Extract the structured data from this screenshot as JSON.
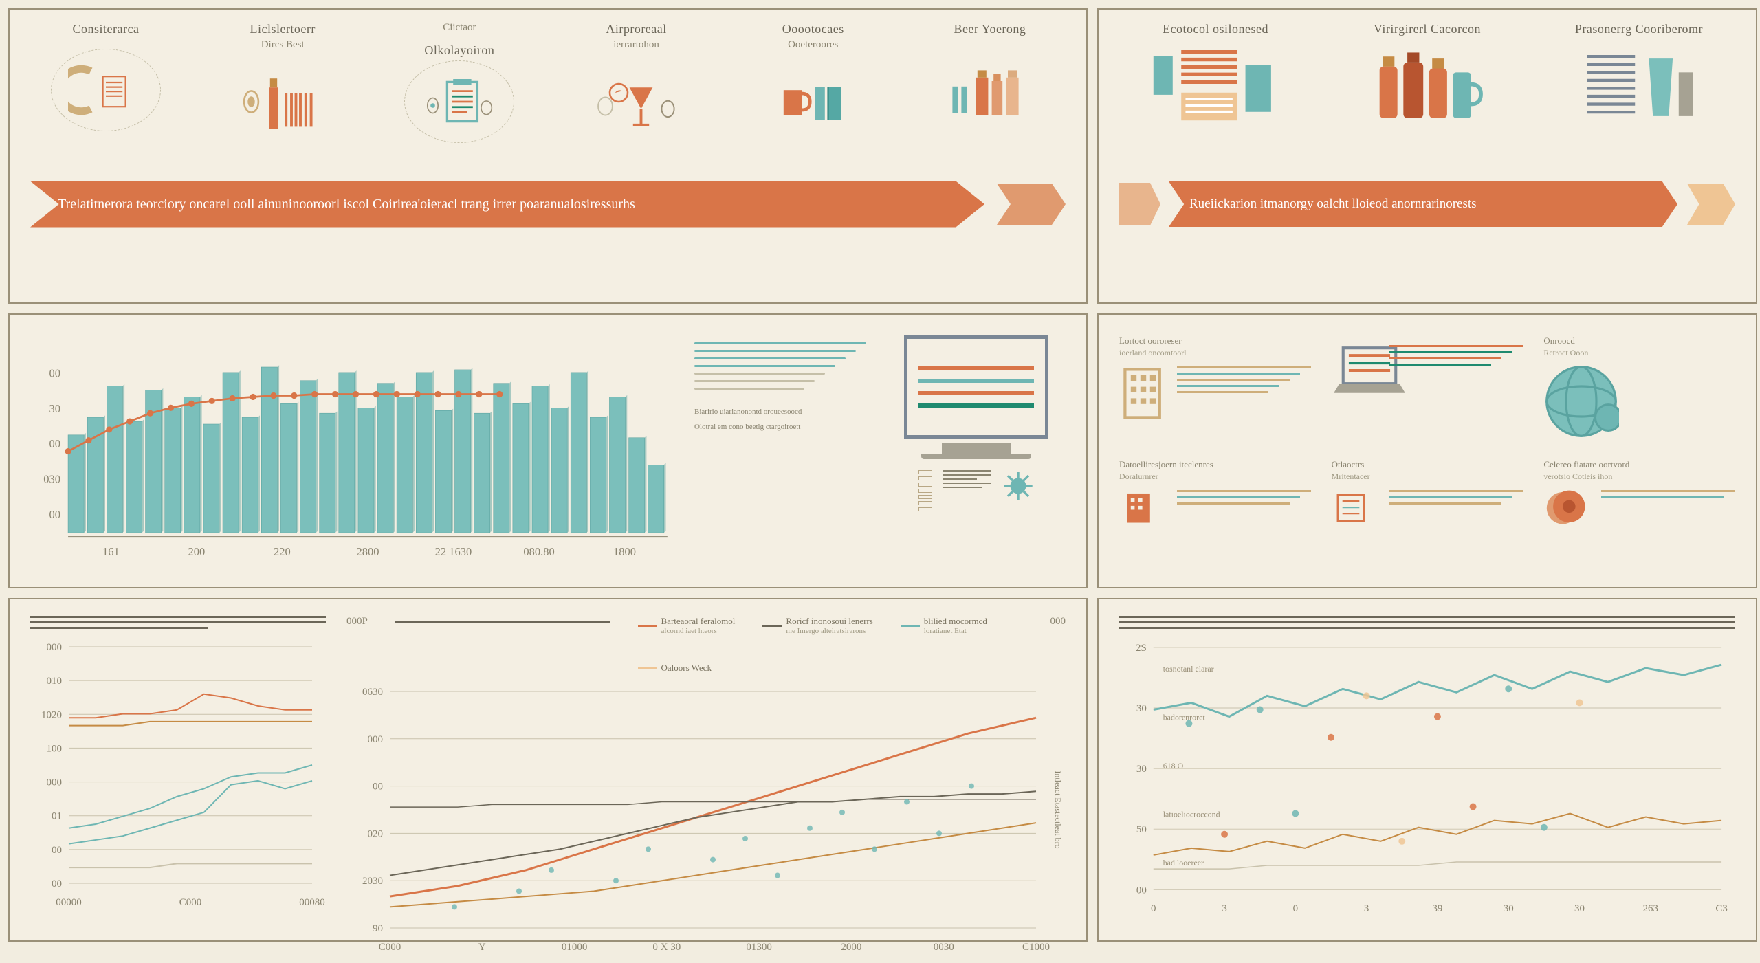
{
  "colors": {
    "bg": "#f2ede0",
    "panel_bg": "#f4efe3",
    "panel_border": "#9a9078",
    "orange": "#d97548",
    "orange_light": "#e09a6f",
    "peach": "#e8b58d",
    "cream": "#efc594",
    "teal": "#6eb6b3",
    "teal_dark": "#5aa3a0",
    "slate": "#7a8795",
    "text_main": "#6b6658",
    "text_sub": "#8a8470",
    "grid": "#c9c2ac",
    "dash": "#c5bfa8"
  },
  "top_left": {
    "icons": [
      {
        "title": "Consiterarca",
        "subtitle": ""
      },
      {
        "title": "Liclslertoerr",
        "subtitle": "Dircs Best"
      },
      {
        "title": "Ciictaor",
        "subtitle": "Olkolayoiron"
      },
      {
        "title": "Airproreaal",
        "subtitle": "ierrartohon"
      },
      {
        "title": "Ooootocaes",
        "subtitle": "Ooeteroores"
      },
      {
        "title": "Beer Yoerong",
        "subtitle": ""
      }
    ],
    "banner": "Trelatitnerora teorciory oncarel ooll ainuninooroorl iscol Coirirea'oieracl trang irrer poaranualosiressurhs"
  },
  "top_right": {
    "icons": [
      {
        "title": "Ecotocol osilonesed",
        "subtitle": ""
      },
      {
        "title": "Virirgirerl Cacorcon",
        "subtitle": ""
      },
      {
        "title": "Prasonerrg Cooriberomr",
        "subtitle": ""
      }
    ],
    "banner": "Rueiickarion itmanorgy oalcht lloieod anornrarinorests"
  },
  "bar_chart": {
    "type": "bar_with_line",
    "y_ticks": [
      "00",
      "030",
      "00",
      "30",
      "00"
    ],
    "x_labels": [
      "161",
      "200",
      "220",
      "2800",
      "22 1630",
      "080.80",
      "1800"
    ],
    "bar_values": [
      72,
      85,
      108,
      82,
      105,
      92,
      100,
      80,
      118,
      85,
      122,
      95,
      112,
      88,
      118,
      92,
      110,
      100,
      118,
      90,
      120,
      88,
      110,
      95,
      108,
      92,
      118,
      85,
      100,
      70,
      50
    ],
    "line_values": [
      60,
      68,
      76,
      82,
      88,
      92,
      95,
      97,
      99,
      100,
      101,
      101,
      102,
      102,
      102,
      102,
      102,
      102,
      102,
      102,
      102,
      102
    ],
    "bar_color": "#7bbfbb",
    "bar_stroke": "#5aa3a0",
    "line_color": "#d97548",
    "marker_color": "#d97548",
    "grid_color": "#c9c2ac",
    "label_color": "#8a8470",
    "ylim": [
      0,
      130
    ],
    "label_fontsize": 18
  },
  "text_block": {
    "lines1": [
      "#6eb6b3",
      "#6eb6b3",
      "#6eb6b3",
      "#6eb6b3",
      "#c5bfa8",
      "#c5bfa8",
      "#c5bfa8"
    ],
    "caption1": "Biaririo uiarianonontd oroueesoocd",
    "caption2": "Olotral em cono beetlg ctargoiroett"
  },
  "monitor_lines": [
    "#d97548",
    "#6eb6b3",
    "#d97548",
    "#1f8a6f"
  ],
  "mid_right": {
    "cells": [
      {
        "title": "Lortoct oororeser",
        "sub": "ioerland oncomtoorl",
        "icon": "building",
        "line_colors": [
          "#ceae7a",
          "#6eb6b3",
          "#ceae7a",
          "#6eb6b3",
          "#ceae7a"
        ]
      },
      {
        "title": "",
        "sub": "",
        "icon": "laptop",
        "line_colors": [
          "#d97548",
          "#1f8a6f",
          "#d97548",
          "#1f8a6f"
        ]
      },
      {
        "title": "Onroocd",
        "sub": "Retroct Ooon",
        "icon": "globe",
        "line_colors": []
      },
      {
        "title": "Datoelliresjoern iteclenres",
        "sub": "Doralurnrer",
        "icon": "building2",
        "line_colors": [
          "#ceae7a",
          "#6eb6b3",
          "#ceae7a"
        ]
      },
      {
        "title": "Otlaoctrs",
        "sub": "Mritentacer",
        "icon": "building3",
        "line_colors": [
          "#ceae7a",
          "#6eb6b3",
          "#ceae7a"
        ]
      },
      {
        "title": "Celereo fiatare oortvord",
        "sub": "verotsio Cotleis ihon",
        "icon": "coin",
        "line_colors": [
          "#ceae7a",
          "#6eb6b3"
        ]
      }
    ]
  },
  "line_small": {
    "type": "line",
    "y_labels": [
      "000",
      "010",
      "1020",
      "100",
      "000",
      "01",
      "00",
      "00"
    ],
    "x_labels": [
      "00000",
      "C000",
      "00080"
    ],
    "series": [
      {
        "color": "#d97548",
        "values": [
          42,
          42,
          43,
          43,
          44,
          48,
          47,
          45,
          44,
          44
        ]
      },
      {
        "color": "#c58b44",
        "values": [
          40,
          40,
          40,
          41,
          41,
          41,
          41,
          41,
          41,
          41
        ]
      },
      {
        "color": "#6eb6b3",
        "values": [
          14,
          15,
          17,
          19,
          22,
          24,
          27,
          28,
          28,
          30
        ]
      },
      {
        "color": "#6eb6b3",
        "values": [
          10,
          11,
          12,
          14,
          16,
          18,
          25,
          26,
          24,
          26
        ]
      },
      {
        "color": "#c9c2ac",
        "values": [
          4,
          4,
          4,
          4,
          5,
          5,
          5,
          5,
          5,
          5
        ]
      }
    ],
    "ylim": [
      0,
      60
    ],
    "grid_color": "#c9c2ac",
    "label_fontsize": 15
  },
  "line_large": {
    "type": "line",
    "top_label": "000P",
    "y_labels": [
      "0630",
      "000",
      "00",
      "020",
      "2030",
      "90"
    ],
    "x_labels": [
      "C000",
      "Y",
      "01000",
      "0 X 30",
      "01300",
      "2000",
      "0030",
      "C1000"
    ],
    "right_axis_title": "Intleact Etastectleat bro",
    "legend": [
      {
        "label": "Barteaoral feralomol",
        "sub": "alcornd iaet hteors",
        "color": "#d97548"
      },
      {
        "label": "Roricf inonosoui lenerrs",
        "sub": "me Imergo alteiratsirarons",
        "color": "#6b6658"
      },
      {
        "label": "blilied mocormcd",
        "sub": "loratianet Etat",
        "color": "#6eb6b3"
      },
      {
        "label": "Oaloors Weck",
        "sub": "",
        "color": "#efc594"
      }
    ],
    "series": [
      {
        "color": "#d97548",
        "width": 3,
        "values": [
          12,
          14,
          16,
          19,
          22,
          26,
          30,
          34,
          38,
          42,
          46,
          50,
          54,
          58,
          62,
          66,
          70,
          74,
          77,
          80
        ]
      },
      {
        "color": "#6b6658",
        "width": 2,
        "values": [
          20,
          22,
          24,
          26,
          28,
          30,
          33,
          36,
          39,
          42,
          44,
          46,
          48,
          48,
          49,
          50,
          50,
          51,
          51,
          52
        ]
      },
      {
        "color": "#c58b44",
        "width": 2,
        "values": [
          8,
          9,
          10,
          11,
          12,
          13,
          14,
          16,
          18,
          20,
          22,
          24,
          26,
          28,
          30,
          32,
          34,
          36,
          38,
          40
        ]
      },
      {
        "color": "#6b6658",
        "width": 1.5,
        "values": [
          46,
          46,
          46,
          47,
          47,
          47,
          47,
          47,
          48,
          48,
          48,
          48,
          48,
          48,
          49,
          49,
          49,
          49,
          49,
          49
        ]
      }
    ],
    "scatter": {
      "color": "#6eb6b3",
      "points": [
        [
          2,
          8
        ],
        [
          4,
          14
        ],
        [
          5,
          22
        ],
        [
          7,
          18
        ],
        [
          8,
          30
        ],
        [
          10,
          26
        ],
        [
          11,
          34
        ],
        [
          12,
          20
        ],
        [
          13,
          38
        ],
        [
          14,
          44
        ],
        [
          15,
          30
        ],
        [
          16,
          48
        ],
        [
          17,
          36
        ],
        [
          18,
          54
        ]
      ]
    },
    "ylim": [
      0,
      90
    ],
    "grid_color": "#c9c2ac",
    "end_label": "000",
    "label_fontsize": 15
  },
  "line_right": {
    "type": "line_scatter",
    "y_labels": [
      "2S",
      "30",
      "30",
      "50",
      "00"
    ],
    "x_labels": [
      "0",
      "3",
      "0",
      "3",
      "39",
      "30",
      "30",
      "263",
      "C3"
    ],
    "annotations": [
      "tosnotanl elarar",
      "badorenroret",
      "618 O",
      "latioeliocroccond",
      "bad looereer"
    ],
    "series": [
      {
        "color": "#6eb6b3",
        "width": 3,
        "values": [
          52,
          54,
          50,
          56,
          53,
          58,
          55,
          60,
          57,
          62,
          58,
          63,
          60,
          64,
          62,
          65
        ]
      },
      {
        "color": "#c58b44",
        "width": 2,
        "values": [
          10,
          12,
          11,
          14,
          12,
          16,
          14,
          18,
          16,
          20,
          19,
          22,
          18,
          21,
          19,
          20
        ]
      },
      {
        "color": "#c9c2ac",
        "width": 1.5,
        "values": [
          6,
          6,
          6,
          7,
          7,
          7,
          7,
          7,
          8,
          8,
          8,
          8,
          8,
          8,
          8,
          8
        ]
      }
    ],
    "scatter_a": {
      "colors": [
        "#6eb6b3",
        "#6eb6b3",
        "#d97548",
        "#efc594",
        "#d97548",
        "#6eb6b3",
        "#efc594"
      ],
      "points": [
        [
          1,
          48
        ],
        [
          3,
          52
        ],
        [
          5,
          44
        ],
        [
          6,
          56
        ],
        [
          8,
          50
        ],
        [
          10,
          58
        ],
        [
          12,
          54
        ]
      ]
    },
    "scatter_b": {
      "colors": [
        "#d97548",
        "#6eb6b3",
        "#efc594",
        "#d97548",
        "#6eb6b3"
      ],
      "points": [
        [
          2,
          16
        ],
        [
          4,
          22
        ],
        [
          7,
          14
        ],
        [
          9,
          24
        ],
        [
          11,
          18
        ]
      ]
    },
    "ylim": [
      0,
      70
    ],
    "grid_color": "#c9c2ac",
    "label_fontsize": 15
  }
}
